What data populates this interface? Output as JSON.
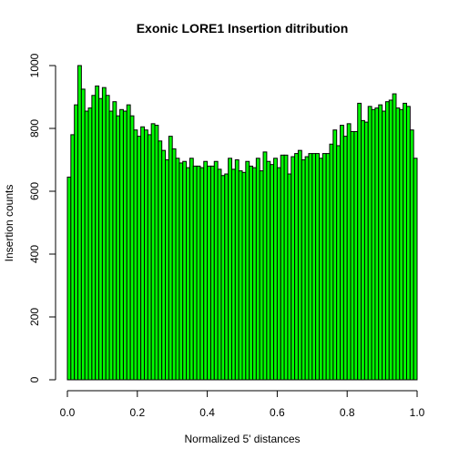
{
  "chart_data": {
    "type": "bar",
    "title": "Exonic LORE1 Insertion ditribution",
    "xlabel": "Normalized 5' distances",
    "ylabel": "Insertion counts",
    "bar_color": "#00ff00",
    "bar_border_color": "#000000",
    "xlim": [
      0,
      1
    ],
    "ylim": [
      0,
      1000
    ],
    "bin_width": 0.01,
    "xticks": [
      "0.0",
      "0.2",
      "0.4",
      "0.6",
      "0.8",
      "1.0"
    ],
    "yticks": [
      "0",
      "200",
      "400",
      "600",
      "800",
      "1000"
    ],
    "grid": false,
    "values": [
      645,
      780,
      875,
      1000,
      925,
      855,
      865,
      905,
      935,
      895,
      930,
      905,
      855,
      885,
      840,
      860,
      855,
      875,
      840,
      795,
      775,
      805,
      795,
      780,
      815,
      810,
      760,
      730,
      700,
      775,
      735,
      705,
      690,
      695,
      675,
      705,
      680,
      680,
      675,
      695,
      680,
      680,
      695,
      670,
      650,
      655,
      705,
      670,
      700,
      665,
      660,
      695,
      680,
      675,
      705,
      665,
      725,
      695,
      685,
      705,
      675,
      715,
      715,
      655,
      710,
      720,
      730,
      700,
      710,
      720,
      720,
      720,
      705,
      720,
      720,
      750,
      795,
      745,
      810,
      775,
      815,
      790,
      790,
      880,
      825,
      820,
      870,
      860,
      865,
      875,
      855,
      885,
      890,
      910,
      865,
      860,
      880,
      870,
      795,
      705
    ]
  }
}
